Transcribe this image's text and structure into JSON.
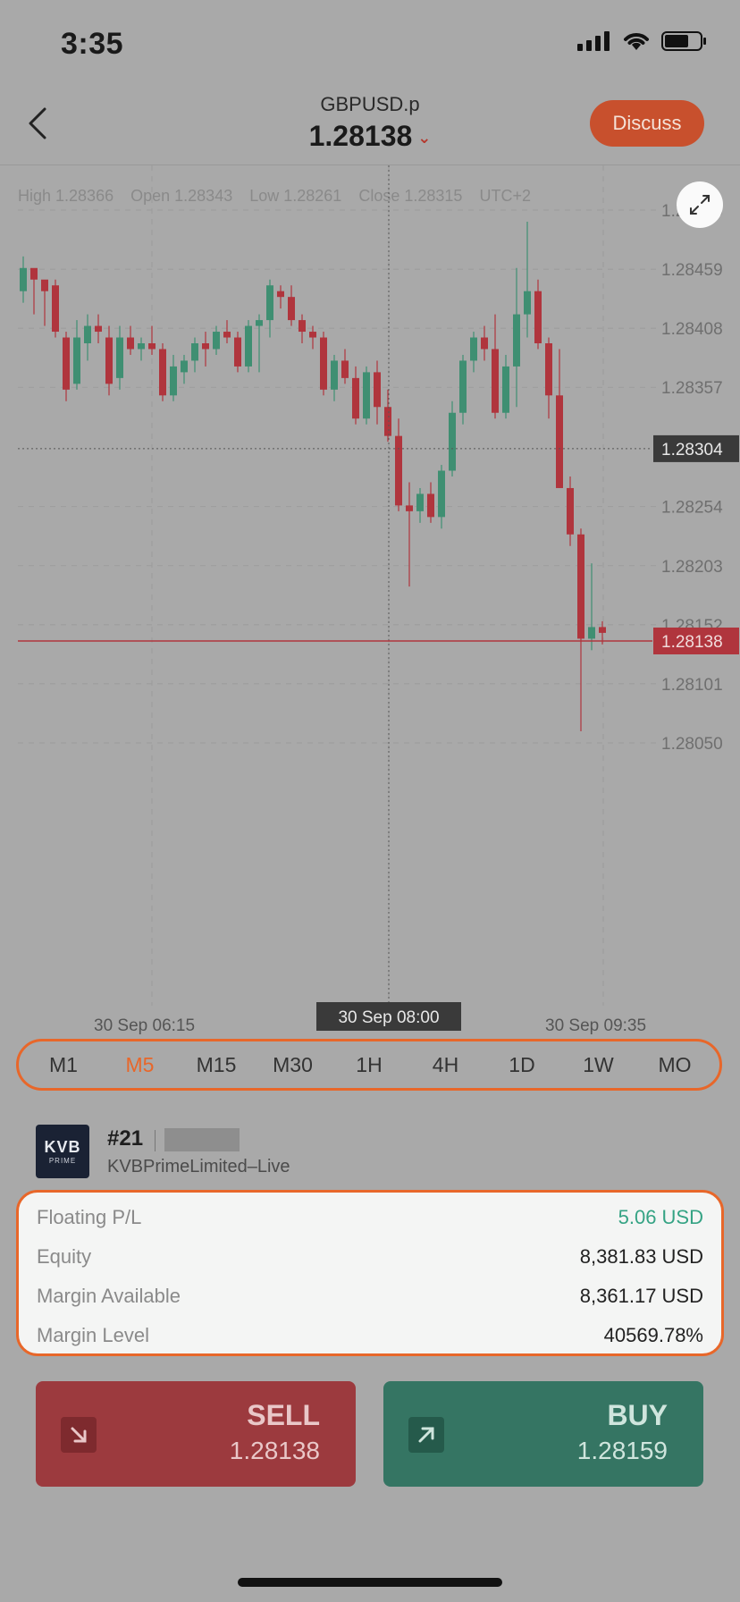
{
  "status_bar": {
    "time": "3:35"
  },
  "header": {
    "symbol": "GBPUSD.p",
    "price": "1.28138",
    "discuss_label": "Discuss"
  },
  "chart": {
    "ohlc": {
      "high": "High 1.28366",
      "open": "Open 1.28343",
      "low": "Low 1.28261",
      "close": "Close 1.28315",
      "tz": "UTC+2"
    },
    "y_ticks": [
      "1.28510",
      "1.28459",
      "1.28408",
      "1.28357",
      "1.28254",
      "1.28203",
      "1.28152",
      "1.28101",
      "1.28050"
    ],
    "crosshair_price": "1.28304",
    "current_price": "1.28138",
    "x_ticks": [
      "30 Sep 06:15",
      "30 Sep 09:35"
    ],
    "crosshair_time": "30 Sep 08:00",
    "colors": {
      "up": "#3f8f72",
      "down": "#b0353d",
      "current_line": "#b0353d"
    }
  },
  "timeframes": {
    "items": [
      "M1",
      "M5",
      "M15",
      "M30",
      "1H",
      "4H",
      "1D",
      "1W",
      "MO"
    ],
    "active": "M5"
  },
  "account": {
    "logo_text": "KVB",
    "logo_sub": "PRIME",
    "number": "#21",
    "name": "KVBPrimeLimited–Live"
  },
  "stats": [
    {
      "label": "Floating P/L",
      "value": "5.06 USD"
    },
    {
      "label": "Equity",
      "value": "8,381.83 USD"
    },
    {
      "label": "Margin Available",
      "value": "8,361.17 USD"
    },
    {
      "label": "Margin Level",
      "value": "40569.78%"
    }
  ],
  "trade": {
    "sell": {
      "label": "SELL",
      "price": "1.28138"
    },
    "buy": {
      "label": "BUY",
      "price": "1.28159"
    }
  },
  "colors": {
    "accent": "#e8672a",
    "discuss": "#c8502d",
    "sell": "#9c3a3e",
    "buy": "#357563",
    "positive": "#35a384"
  }
}
